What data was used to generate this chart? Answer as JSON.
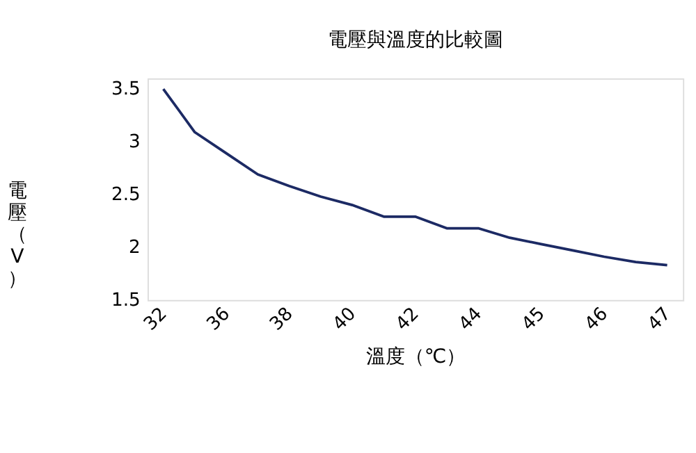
{
  "chart_data": {
    "type": "line",
    "title": "電壓與溫度的比較圖",
    "xlabel": "溫度（℃）",
    "ylabel": "電壓（V）",
    "categories": [
      "32",
      null,
      "36",
      null,
      "38",
      null,
      "40",
      null,
      "42",
      null,
      "44",
      null,
      "45",
      null,
      "46",
      null,
      "47"
    ],
    "series": [
      {
        "color": "#1c2a64",
        "values": [
          3.5,
          3.09,
          2.89,
          2.69,
          2.58,
          2.48,
          2.4,
          2.29,
          2.29,
          2.18,
          2.18,
          2.09,
          2.03,
          1.97,
          1.91,
          1.86,
          1.83
        ]
      }
    ],
    "ylim": [
      1.5,
      3.6
    ],
    "yticks": [
      1.5,
      2,
      2.5,
      3,
      3.5
    ],
    "grid": false,
    "marker": "none",
    "line_style": "solid"
  }
}
